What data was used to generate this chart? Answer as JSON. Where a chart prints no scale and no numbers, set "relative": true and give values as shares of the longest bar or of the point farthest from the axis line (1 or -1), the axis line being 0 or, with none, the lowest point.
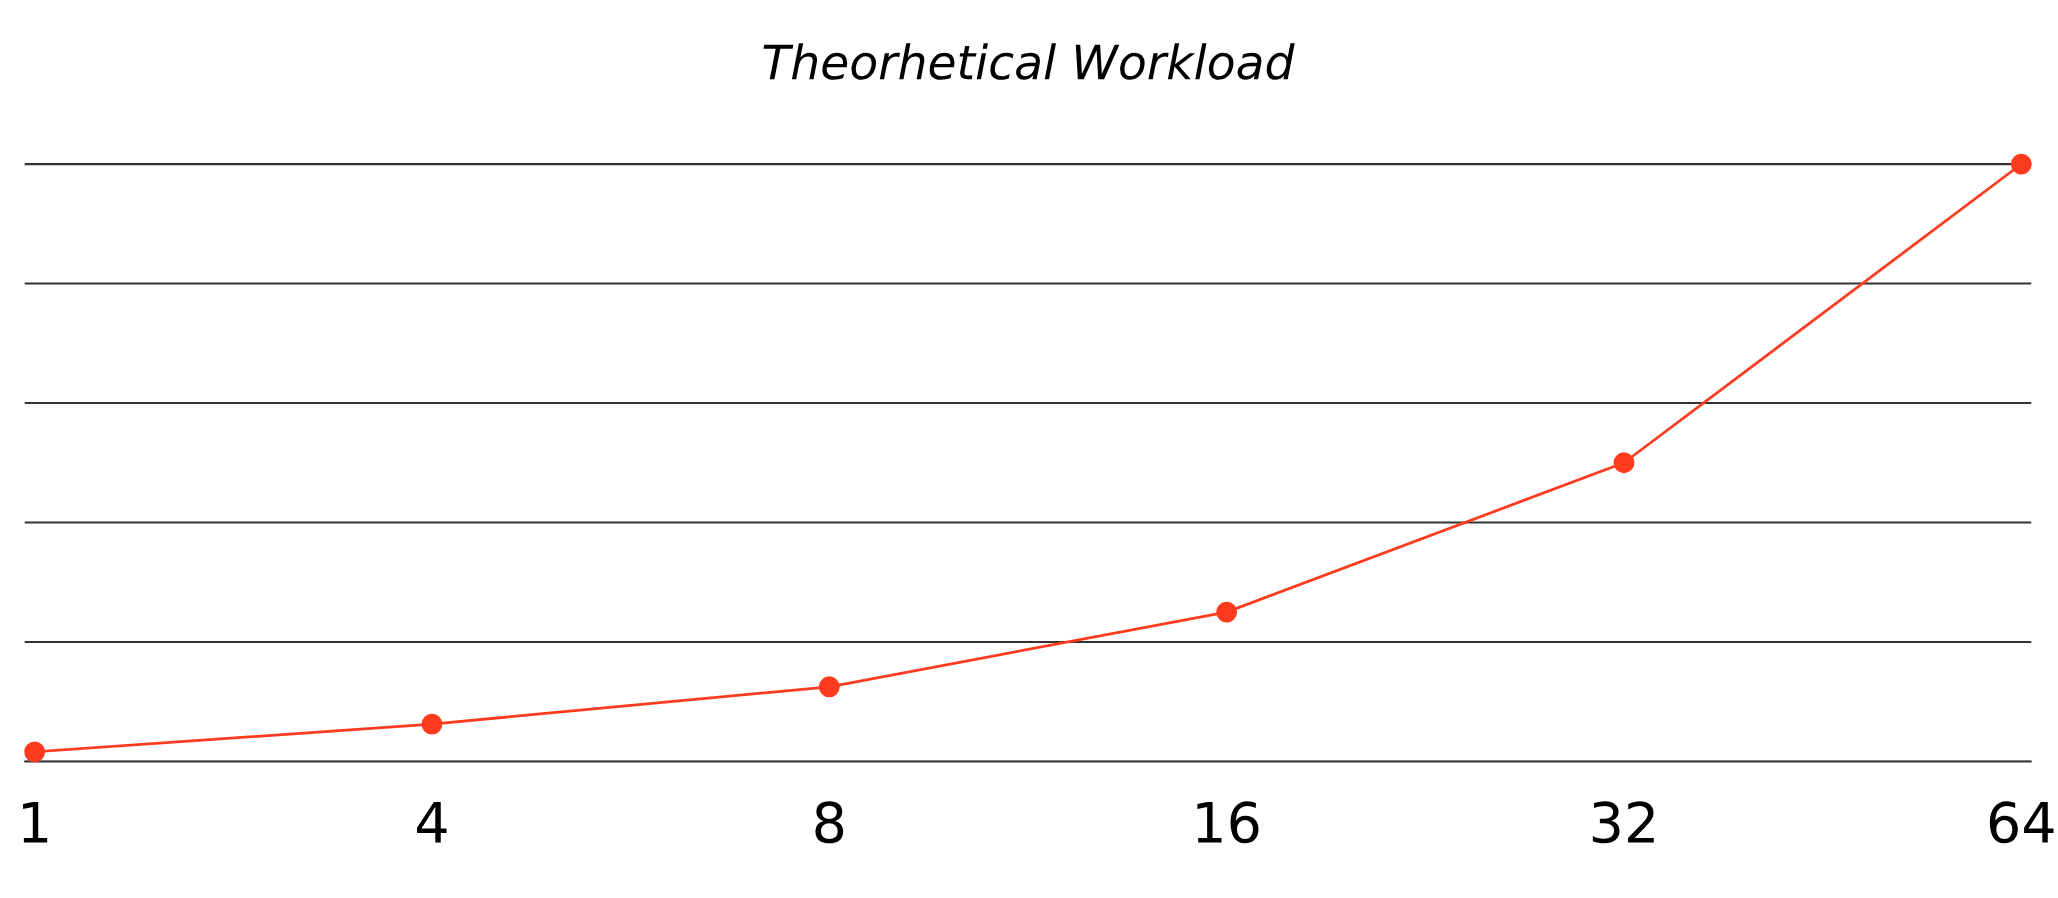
{
  "chart_data": {
    "type": "line",
    "title": "Theorhetical Workload",
    "categories": [
      "1",
      "4",
      "8",
      "16",
      "32",
      "64"
    ],
    "series": [
      {
        "color": "#ff3b1f",
        "values": [
          0.016,
          0.0625,
          0.125,
          0.25,
          0.5,
          1
        ]
      }
    ],
    "relative": true,
    "grid": "y",
    "marker": "circle",
    "line_style": "solid"
  }
}
